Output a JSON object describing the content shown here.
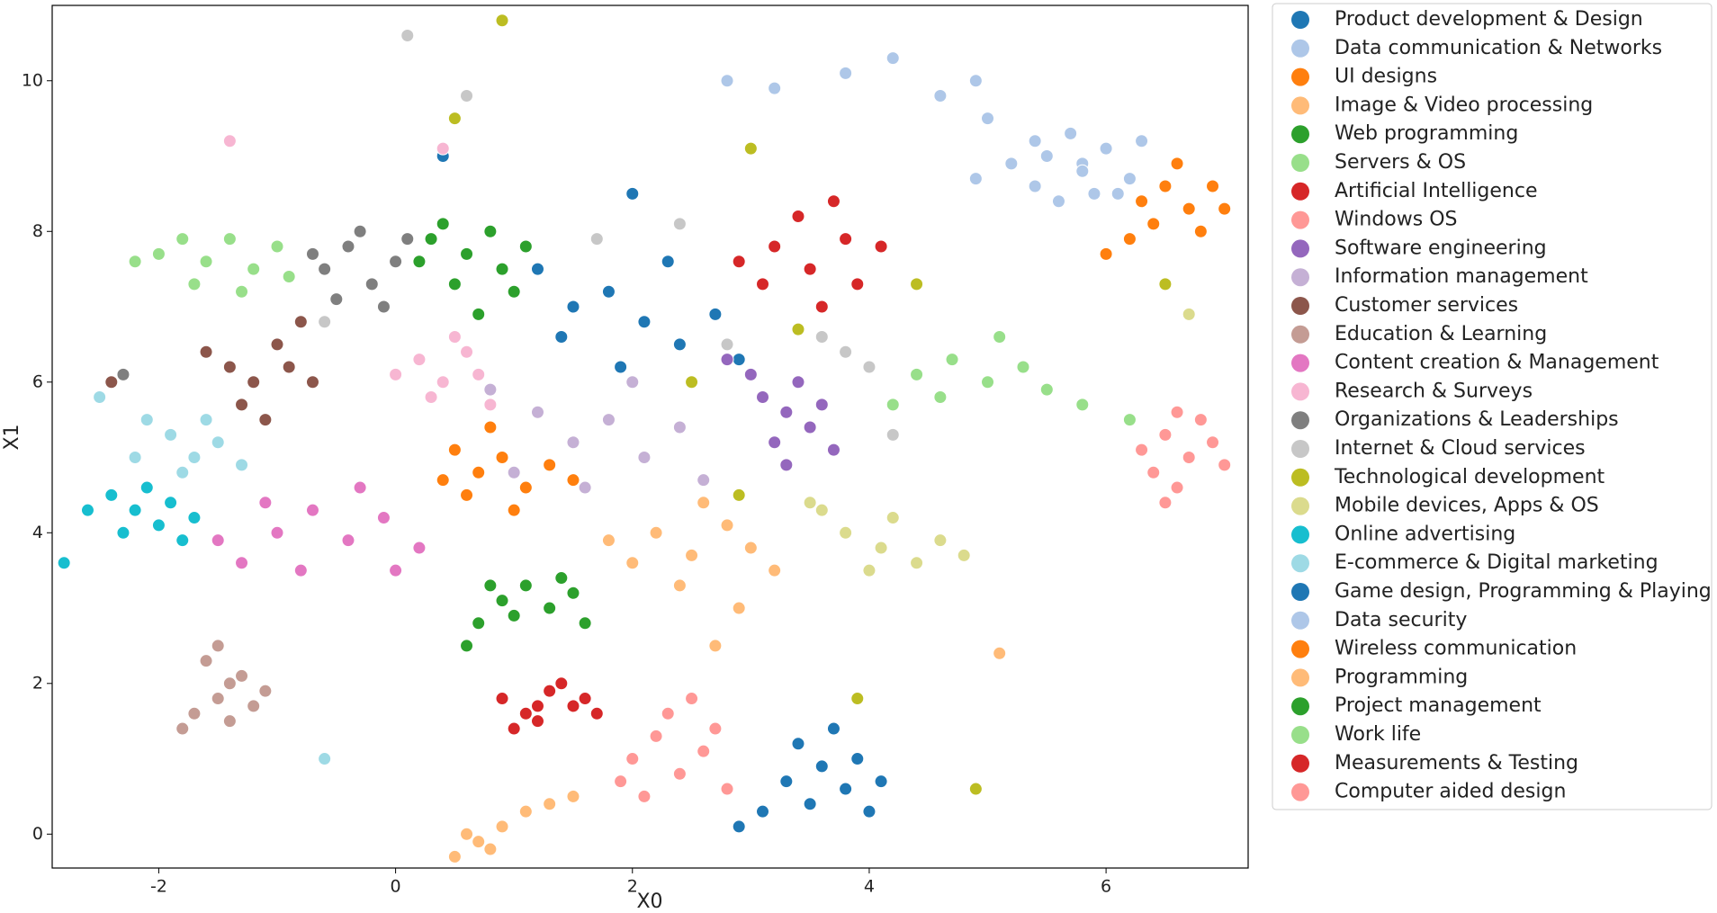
{
  "chart_data": {
    "type": "scatter",
    "xlabel": "X0",
    "ylabel": "X1",
    "xlim": [
      -2.9,
      7.2
    ],
    "ylim": [
      -0.45,
      11.0
    ],
    "xticks": [
      -2,
      0,
      2,
      4,
      6
    ],
    "yticks": [
      0,
      2,
      4,
      6,
      8,
      10
    ],
    "legend": "outside right",
    "series": [
      {
        "name": "Product development & Design",
        "color": "#1f77b4",
        "x": [
          1.2,
          1.5,
          1.8,
          2.1,
          2.4,
          2.7,
          1.9,
          2.3,
          1.4,
          2.9,
          2.0,
          0.4
        ],
        "y": [
          7.5,
          7.0,
          7.2,
          6.8,
          6.5,
          6.9,
          6.2,
          7.6,
          6.6,
          6.3,
          8.5,
          9.0
        ]
      },
      {
        "name": "Data communication & Networks",
        "color": "#aec7e8",
        "x": [
          3.8,
          4.2,
          4.6,
          5.0,
          5.4,
          5.8,
          6.1,
          4.9,
          5.6,
          3.2,
          2.8,
          6.5
        ],
        "y": [
          10.1,
          10.3,
          9.8,
          9.5,
          9.2,
          8.9,
          8.5,
          10.0,
          8.4,
          9.9,
          10.0,
          8.6
        ]
      },
      {
        "name": "UI designs",
        "color": "#ff7f0e",
        "x": [
          6.5,
          6.7,
          6.9,
          6.4,
          6.2,
          6.6,
          6.8,
          6.0,
          6.3,
          7.0
        ],
        "y": [
          8.6,
          8.3,
          8.6,
          8.1,
          7.9,
          8.9,
          8.0,
          7.7,
          8.4,
          8.3
        ]
      },
      {
        "name": "Image & Video processing",
        "color": "#ffbb78",
        "x": [
          2.2,
          2.5,
          2.8,
          2.4,
          3.0,
          2.0,
          2.6,
          3.2,
          1.8,
          2.9
        ],
        "y": [
          4.0,
          3.7,
          4.1,
          3.3,
          3.8,
          3.6,
          4.4,
          3.5,
          3.9,
          3.0
        ]
      },
      {
        "name": "Web programming",
        "color": "#2ca02c",
        "x": [
          0.3,
          0.6,
          0.9,
          0.5,
          0.8,
          1.0,
          0.2,
          0.7,
          1.1,
          0.4
        ],
        "y": [
          7.9,
          7.7,
          7.5,
          7.3,
          8.0,
          7.2,
          7.6,
          6.9,
          7.8,
          8.1
        ]
      },
      {
        "name": "Servers & OS",
        "color": "#98df8a",
        "x": [
          4.4,
          4.7,
          5.0,
          5.3,
          4.6,
          5.1,
          5.5,
          4.2,
          5.8,
          6.2
        ],
        "y": [
          6.1,
          6.3,
          6.0,
          6.2,
          5.8,
          6.6,
          5.9,
          5.7,
          5.7,
          5.5
        ]
      },
      {
        "name": "Artificial Intelligence",
        "color": "#d62728",
        "x": [
          3.2,
          3.5,
          3.8,
          3.4,
          3.9,
          3.1,
          3.6,
          4.1,
          2.9,
          3.7
        ],
        "y": [
          7.8,
          7.5,
          7.9,
          8.2,
          7.3,
          7.3,
          7.0,
          7.8,
          7.6,
          8.4
        ]
      },
      {
        "name": "Windows OS",
        "color": "#ff9896",
        "x": [
          6.5,
          6.7,
          6.9,
          6.4,
          6.6,
          6.8,
          6.3,
          7.0,
          6.6,
          6.5
        ],
        "y": [
          5.3,
          5.0,
          5.2,
          4.8,
          4.6,
          5.5,
          5.1,
          4.9,
          5.6,
          4.4
        ]
      },
      {
        "name": "Software engineering",
        "color": "#9467bd",
        "x": [
          3.1,
          3.3,
          3.5,
          3.2,
          3.4,
          3.6,
          3.0,
          3.7,
          3.3,
          2.8
        ],
        "y": [
          5.8,
          5.6,
          5.4,
          5.2,
          6.0,
          5.7,
          6.1,
          5.1,
          4.9,
          6.3
        ]
      },
      {
        "name": "Information management",
        "color": "#c5b0d5",
        "x": [
          1.2,
          1.5,
          1.8,
          2.1,
          1.0,
          2.4,
          1.6,
          0.8,
          2.6,
          2.0
        ],
        "y": [
          5.6,
          5.2,
          5.5,
          5.0,
          4.8,
          5.4,
          4.6,
          5.9,
          4.7,
          6.0
        ]
      },
      {
        "name": "Customer services",
        "color": "#8c564b",
        "x": [
          -1.4,
          -1.2,
          -1.0,
          -0.9,
          -1.3,
          -0.8,
          -1.6,
          -1.1,
          -0.7,
          -2.4
        ],
        "y": [
          6.2,
          6.0,
          6.5,
          6.2,
          5.7,
          6.8,
          6.4,
          5.5,
          6.0,
          6.0
        ]
      },
      {
        "name": "Education & Learning",
        "color": "#c49c94",
        "x": [
          -1.7,
          -1.5,
          -1.3,
          -1.6,
          -1.4,
          -1.2,
          -1.8,
          -1.5,
          -1.1,
          -1.4
        ],
        "y": [
          1.6,
          1.8,
          2.1,
          2.3,
          1.5,
          1.7,
          1.4,
          2.5,
          1.9,
          2.0
        ]
      },
      {
        "name": "Content creation & Management",
        "color": "#e377c2",
        "x": [
          -1.3,
          -1.0,
          -0.7,
          -0.4,
          -0.1,
          0.2,
          -0.8,
          -1.1,
          -0.3,
          0.0,
          -1.5
        ],
        "y": [
          3.6,
          4.0,
          4.3,
          3.9,
          4.2,
          3.8,
          3.5,
          4.4,
          4.6,
          3.5,
          3.9
        ]
      },
      {
        "name": "Research & Surveys",
        "color": "#f7b6d2",
        "x": [
          0.2,
          0.4,
          0.6,
          0.3,
          0.7,
          0.5,
          0.0,
          0.8,
          0.4,
          -1.4
        ],
        "y": [
          6.3,
          6.0,
          6.4,
          5.8,
          6.1,
          6.6,
          6.1,
          5.7,
          9.1,
          9.2
        ]
      },
      {
        "name": "Organizations & Leaderships",
        "color": "#7f7f7f",
        "x": [
          -0.6,
          -0.4,
          -0.2,
          0.0,
          -0.5,
          -0.3,
          0.1,
          -0.7,
          -0.1,
          -2.3
        ],
        "y": [
          7.5,
          7.8,
          7.3,
          7.6,
          7.1,
          8.0,
          7.9,
          7.7,
          7.0,
          6.1
        ]
      },
      {
        "name": "Internet & Cloud services",
        "color": "#c7c7c7",
        "x": [
          3.8,
          4.0,
          2.4,
          0.6,
          -0.6,
          1.7,
          4.2,
          3.6,
          0.1,
          2.8
        ],
        "y": [
          6.4,
          6.2,
          8.1,
          9.8,
          6.8,
          7.9,
          5.3,
          6.6,
          10.6,
          6.5
        ]
      },
      {
        "name": "Technological development",
        "color": "#bcbd22",
        "x": [
          3.4,
          3.0,
          2.5,
          4.4,
          0.5,
          2.9,
          3.9,
          4.9,
          6.5,
          0.9
        ],
        "y": [
          6.7,
          9.1,
          6.0,
          7.3,
          9.5,
          4.5,
          1.8,
          0.6,
          7.3,
          10.8
        ]
      },
      {
        "name": "Mobile devices, Apps & OS",
        "color": "#dbdb8d",
        "x": [
          3.8,
          4.1,
          4.4,
          4.6,
          4.2,
          3.6,
          4.8,
          4.0,
          3.5,
          6.7
        ],
        "y": [
          4.0,
          3.8,
          3.6,
          3.9,
          4.2,
          4.3,
          3.7,
          3.5,
          4.4,
          6.9
        ]
      },
      {
        "name": "Online advertising",
        "color": "#17becf",
        "x": [
          -2.4,
          -2.2,
          -2.0,
          -1.8,
          -2.1,
          -1.9,
          -2.3,
          -1.7,
          -2.6,
          -2.8
        ],
        "y": [
          4.5,
          4.3,
          4.1,
          3.9,
          4.6,
          4.4,
          4.0,
          4.2,
          4.3,
          3.6
        ]
      },
      {
        "name": "E-commerce & Digital marketing",
        "color": "#9edae5",
        "x": [
          -1.9,
          -1.7,
          -1.5,
          -1.8,
          -2.1,
          -1.6,
          -2.5,
          -1.3,
          -2.2,
          -0.6
        ],
        "y": [
          5.3,
          5.0,
          5.2,
          4.8,
          5.5,
          5.5,
          5.8,
          4.9,
          5.0,
          1.0
        ]
      },
      {
        "name": "Game design, Programming & Playing",
        "color": "#1f77b4",
        "x": [
          3.4,
          3.6,
          3.8,
          3.5,
          3.9,
          3.7,
          4.0,
          3.3,
          3.1,
          2.9,
          4.1
        ],
        "y": [
          1.2,
          0.9,
          0.6,
          0.4,
          1.0,
          1.4,
          0.3,
          0.7,
          0.3,
          0.1,
          0.7
        ]
      },
      {
        "name": "Data security",
        "color": "#aec7e8",
        "x": [
          5.5,
          5.8,
          6.0,
          5.4,
          5.7,
          6.2,
          5.2,
          5.9,
          4.9,
          6.3
        ],
        "y": [
          9.0,
          8.8,
          9.1,
          8.6,
          9.3,
          8.7,
          8.9,
          8.5,
          8.7,
          9.2
        ]
      },
      {
        "name": "Wireless communication",
        "color": "#ff7f0e",
        "x": [
          0.5,
          0.7,
          0.9,
          1.1,
          0.6,
          1.3,
          0.8,
          1.0,
          1.5,
          0.4
        ],
        "y": [
          5.1,
          4.8,
          5.0,
          4.6,
          4.5,
          4.9,
          5.4,
          4.3,
          4.7,
          4.7
        ]
      },
      {
        "name": "Programming",
        "color": "#ffbb78",
        "x": [
          0.5,
          0.7,
          0.9,
          1.1,
          1.3,
          0.6,
          1.5,
          0.8,
          5.1,
          2.7
        ],
        "y": [
          -0.3,
          -0.1,
          0.1,
          0.3,
          0.4,
          0.0,
          0.5,
          -0.2,
          2.4,
          2.5
        ]
      },
      {
        "name": "Project management",
        "color": "#2ca02c",
        "x": [
          0.7,
          0.9,
          1.1,
          1.3,
          1.5,
          0.6,
          1.0,
          1.4,
          1.6,
          0.8
        ],
        "y": [
          2.8,
          3.1,
          3.3,
          3.0,
          3.2,
          2.5,
          2.9,
          3.4,
          2.8,
          3.3
        ]
      },
      {
        "name": "Work life",
        "color": "#98df8a",
        "x": [
          -2.0,
          -1.8,
          -1.6,
          -1.4,
          -1.2,
          -1.0,
          -1.7,
          -1.3,
          -2.2,
          -0.9
        ],
        "y": [
          7.7,
          7.9,
          7.6,
          7.9,
          7.5,
          7.8,
          7.3,
          7.2,
          7.6,
          7.4
        ]
      },
      {
        "name": "Measurements & Testing",
        "color": "#d62728",
        "x": [
          0.9,
          1.1,
          1.3,
          1.5,
          1.2,
          1.6,
          1.0,
          1.4,
          1.7,
          1.2
        ],
        "y": [
          1.8,
          1.6,
          1.9,
          1.7,
          1.5,
          1.8,
          1.4,
          2.0,
          1.6,
          1.7
        ]
      },
      {
        "name": "Computer aided design",
        "color": "#ff9896",
        "x": [
          2.0,
          2.2,
          2.4,
          2.6,
          2.3,
          2.8,
          2.1,
          2.5,
          1.9,
          2.7
        ],
        "y": [
          1.0,
          1.3,
          0.8,
          1.1,
          1.6,
          0.6,
          0.5,
          1.8,
          0.7,
          1.4
        ]
      }
    ]
  }
}
